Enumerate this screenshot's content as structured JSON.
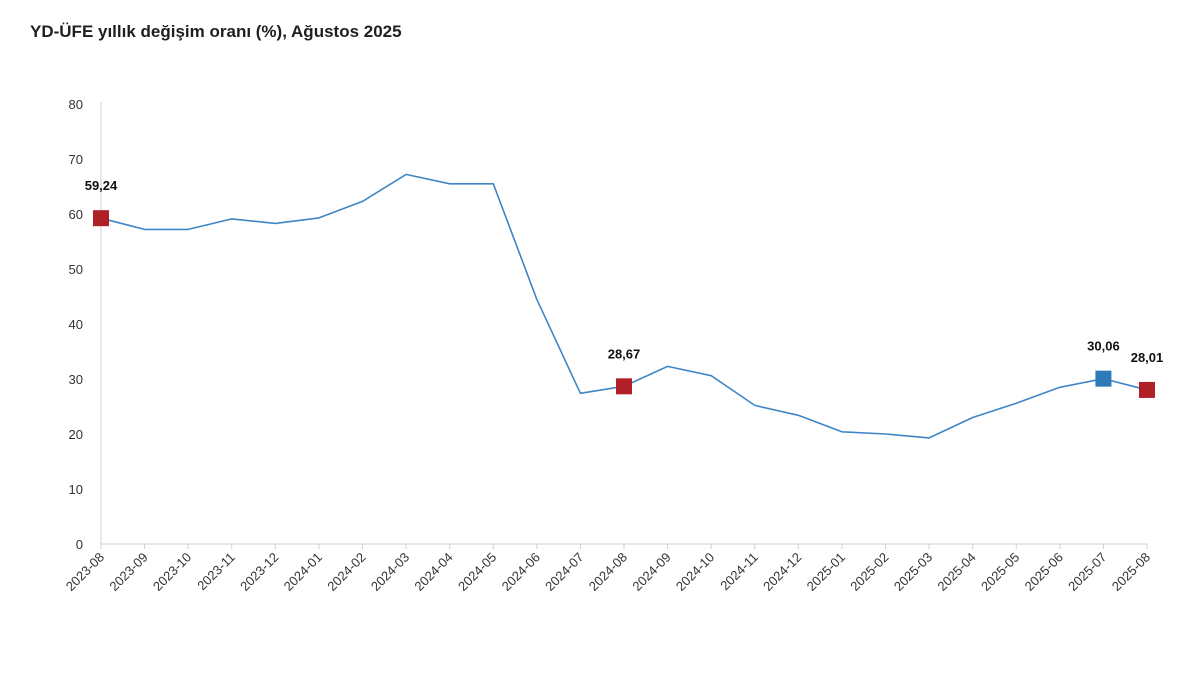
{
  "chart_data": {
    "type": "line",
    "title": "YD-ÜFE yıllık değişim oranı (%), Ağustos 2025",
    "xlabel": "",
    "ylabel": "",
    "ylim": [
      0,
      80
    ],
    "yticks": [
      "0",
      "10",
      "20",
      "30",
      "40",
      "50",
      "60",
      "70",
      "80"
    ],
    "grid": false,
    "legend": "none",
    "categories": [
      "2023-08",
      "2023-09",
      "2023-10",
      "2023-11",
      "2023-12",
      "2024-01",
      "2024-02",
      "2024-03",
      "2024-04",
      "2024-05",
      "2024-06",
      "2024-07",
      "2024-08",
      "2024-09",
      "2024-10",
      "2024-11",
      "2024-12",
      "2025-01",
      "2025-02",
      "2025-03",
      "2025-04",
      "2025-05",
      "2025-06",
      "2025-07",
      "2025-08"
    ],
    "series": [
      {
        "values": [
          59.24,
          57.2,
          57.2,
          59.1,
          58.3,
          59.3,
          62.3,
          67.2,
          65.5,
          65.5,
          44.5,
          27.4,
          28.67,
          32.3,
          30.6,
          25.2,
          23.4,
          20.4,
          20.0,
          19.3,
          23.0,
          25.6,
          28.5,
          30.06,
          28.01
        ]
      }
    ],
    "highlights": [
      {
        "category": "2023-08",
        "value": 59.24,
        "label": "59,24",
        "color": "#b22027"
      },
      {
        "category": "2024-08",
        "value": 28.67,
        "label": "28,67",
        "color": "#b22027"
      },
      {
        "category": "2025-07",
        "value": 30.06,
        "label": "30,06",
        "color": "#2e7ab8"
      },
      {
        "category": "2025-08",
        "value": 28.01,
        "label": "28,01",
        "color": "#b22027"
      }
    ],
    "colors": {
      "line": "#3f86c6",
      "axis": "#d0d0d0"
    }
  }
}
